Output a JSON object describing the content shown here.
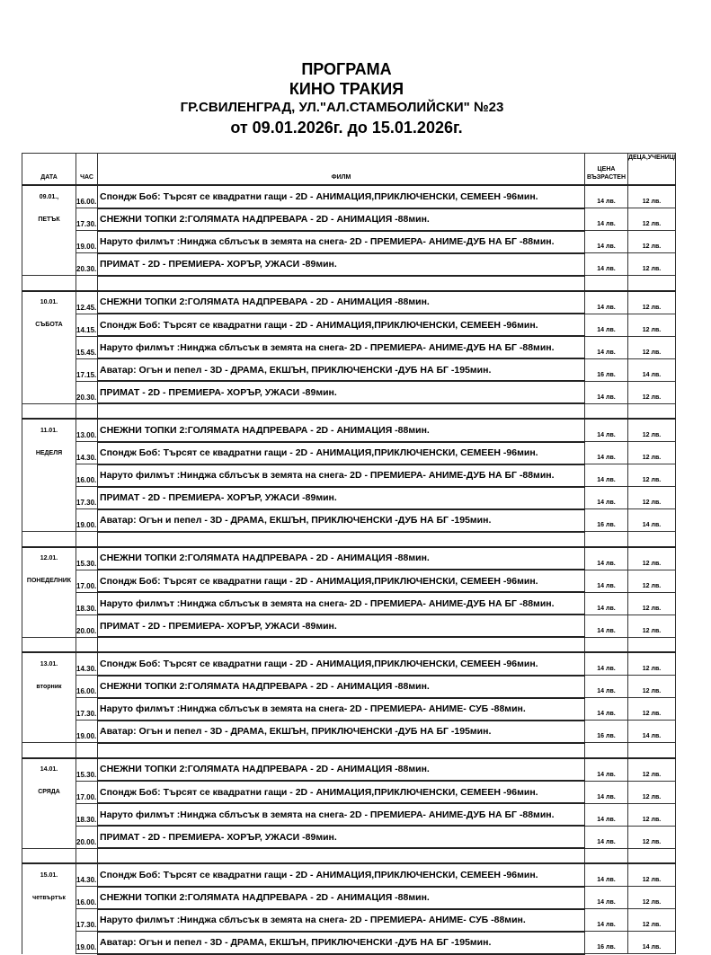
{
  "header": {
    "title": "ПРОГРАМА",
    "cinema": "КИНО ТРАКИЯ",
    "address": "ГР.СВИЛЕНГРАД, УЛ.\"АЛ.СТАМБОЛИЙСКИ\" №23",
    "period": "от 09.01.2026г. до 15.01.2026г."
  },
  "columns": {
    "date": "ДАТА",
    "time": "ЧАС",
    "film": "ФИЛМ",
    "adult": "ЦЕНА ВЪЗРАСТЕН",
    "kids": "ДЕЦА,УЧЕНИЦИ,ПЕНСИОНЕРИ"
  },
  "days": [
    {
      "date": "09.01.,",
      "weekday": "ПЕТЪК",
      "shows": [
        {
          "time": "16.00.",
          "film": "Спондж Боб: Търсят се квадратни гащи - 2D - АНИМАЦИЯ,ПРИКЛЮЧЕНСКИ, СЕМЕЕН  -96мин.",
          "adult": "14 лв.",
          "kids": "12 лв."
        },
        {
          "time": "17.30.",
          "film": "СНЕЖНИ ТОПКИ 2:ГОЛЯМАТА НАДПРЕВАРА    - 2D - АНИМАЦИЯ  -88мин.",
          "adult": "14 лв.",
          "kids": "12 лв."
        },
        {
          "time": "19.00.",
          "film": "Наруто филмът :Нинджа сблъсък в земята на снега- 2D - ПРЕМИЕРА- АНИМЕ-ДУБ НА БГ -88мин.",
          "adult": "14 лв.",
          "kids": "12 лв."
        },
        {
          "time": "20.30.",
          "film": "ПРИМАТ  - 2D - ПРЕМИЕРА- ХОРЪР, УЖАСИ -89мин.",
          "adult": "14 лв.",
          "kids": "12 лв."
        }
      ]
    },
    {
      "date": "10.01.",
      "weekday": "СЪБОТА",
      "shows": [
        {
          "time": "12.45.",
          "film": "СНЕЖНИ ТОПКИ 2:ГОЛЯМАТА НАДПРЕВАРА    - 2D - АНИМАЦИЯ  -88мин.",
          "adult": "14 лв.",
          "kids": "12 лв."
        },
        {
          "time": "14.15.",
          "film": "Спондж Боб: Търсят се квадратни гащи - 2D - АНИМАЦИЯ,ПРИКЛЮЧЕНСКИ, СЕМЕЕН  -96мин.",
          "adult": "14 лв.",
          "kids": "12 лв."
        },
        {
          "time": "15.45.",
          "film": "Наруто филмът :Нинджа сблъсък в земята на снега- 2D - ПРЕМИЕРА- АНИМЕ-ДУБ НА БГ -88мин.",
          "adult": "14 лв.",
          "kids": "12 лв."
        },
        {
          "time": "17.15.",
          "film": "Аватар: Огън и пепел - 3D - ДРАМА, ЕКШЪН, ПРИКЛЮЧЕНСКИ -ДУБ НА БГ -195мин.",
          "adult": "16 лв.",
          "kids": "14 лв."
        },
        {
          "time": "20.30.",
          "film": "ПРИМАТ  - 2D - ПРЕМИЕРА- ХОРЪР, УЖАСИ -89мин.",
          "adult": "14 лв.",
          "kids": "12 лв."
        }
      ]
    },
    {
      "date": "11.01.",
      "weekday": "НЕДЕЛЯ",
      "shows": [
        {
          "time": "13.00.",
          "film": "СНЕЖНИ ТОПКИ 2:ГОЛЯМАТА НАДПРЕВАРА    - 2D - АНИМАЦИЯ  -88мин.",
          "adult": "14 лв.",
          "kids": "12 лв."
        },
        {
          "time": "14.30.",
          "film": "Спондж Боб: Търсят се квадратни гащи - 2D - АНИМАЦИЯ,ПРИКЛЮЧЕНСКИ, СЕМЕЕН  -96мин.",
          "adult": "14 лв.",
          "kids": "12 лв."
        },
        {
          "time": "16.00.",
          "film": "Наруто филмът :Нинджа сблъсък в земята на снега- 2D - ПРЕМИЕРА- АНИМЕ-ДУБ НА БГ -88мин.",
          "adult": "14 лв.",
          "kids": "12 лв."
        },
        {
          "time": "17.30.",
          "film": "ПРИМАТ  - 2D - ПРЕМИЕРА- ХОРЪР, УЖАСИ -89мин.",
          "adult": "14 лв.",
          "kids": "12 лв."
        },
        {
          "time": "19.00.",
          "film": "Аватар: Огън и пепел - 3D - ДРАМА, ЕКШЪН, ПРИКЛЮЧЕНСКИ -ДУБ НА БГ -195мин.",
          "adult": "16 лв.",
          "kids": "14 лв."
        }
      ]
    },
    {
      "date": "12.01.",
      "weekday": "ПОНЕДЕЛНИК",
      "shows": [
        {
          "time": "15.30.",
          "film": "СНЕЖНИ ТОПКИ 2:ГОЛЯМАТА НАДПРЕВАРА    - 2D - АНИМАЦИЯ  -88мин.",
          "adult": "14 лв.",
          "kids": "12 лв."
        },
        {
          "time": "17.00.",
          "film": "Спондж Боб: Търсят се квадратни гащи - 2D - АНИМАЦИЯ,ПРИКЛЮЧЕНСКИ, СЕМЕЕН  -96мин.",
          "adult": "14 лв.",
          "kids": "12 лв."
        },
        {
          "time": "18.30.",
          "film": "Наруто филмът :Нинджа сблъсък в земята на снега- 2D - ПРЕМИЕРА- АНИМЕ-ДУБ НА БГ -88мин.",
          "adult": "14 лв.",
          "kids": "12 лв."
        },
        {
          "time": "20.00.",
          "film": "ПРИМАТ  - 2D - ПРЕМИЕРА- ХОРЪР, УЖАСИ -89мин.",
          "adult": "14 лв.",
          "kids": "12 лв."
        }
      ]
    },
    {
      "date": "13.01.",
      "weekday": "вторник",
      "shows": [
        {
          "time": "14.30.",
          "film": "Спондж Боб: Търсят се квадратни гащи - 2D - АНИМАЦИЯ,ПРИКЛЮЧЕНСКИ, СЕМЕЕН  -96мин.",
          "adult": "14 лв.",
          "kids": "12 лв."
        },
        {
          "time": "16.00.",
          "film": "СНЕЖНИ ТОПКИ 2:ГОЛЯМАТА НАДПРЕВАРА    - 2D - АНИМАЦИЯ  -88мин.",
          "adult": "14 лв.",
          "kids": "12 лв."
        },
        {
          "time": "17.30.",
          "film": "Наруто филмът :Нинджа сблъсък в земята на снега- 2D - ПРЕМИЕРА- АНИМЕ- СУБ -88мин.",
          "adult": "14 лв.",
          "kids": "12 лв."
        },
        {
          "time": "19.00.",
          "film": "Аватар: Огън и пепел - 3D - ДРАМА, ЕКШЪН, ПРИКЛЮЧЕНСКИ -ДУБ НА БГ -195мин.",
          "adult": "16 лв.",
          "kids": "14 лв."
        }
      ]
    },
    {
      "date": "14.01.",
      "weekday": "СРЯДА",
      "shows": [
        {
          "time": "15.30.",
          "film": "СНЕЖНИ ТОПКИ 2:ГОЛЯМАТА НАДПРЕВАРА    - 2D - АНИМАЦИЯ  -88мин.",
          "adult": "14 лв.",
          "kids": "12 лв."
        },
        {
          "time": "17.00.",
          "film": "Спондж Боб: Търсят се квадратни гащи - 2D - АНИМАЦИЯ,ПРИКЛЮЧЕНСКИ, СЕМЕЕН  -96мин.",
          "adult": "14 лв.",
          "kids": "12 лв."
        },
        {
          "time": "18.30.",
          "film": "Наруто филмът :Нинджа сблъсък в земята на снега- 2D - ПРЕМИЕРА- АНИМЕ-ДУБ НА БГ -88мин.",
          "adult": "14 лв.",
          "kids": "12 лв."
        },
        {
          "time": "20.00.",
          "film": "ПРИМАТ  - 2D - ПРЕМИЕРА- ХОРЪР, УЖАСИ -89мин.",
          "adult": "14 лв.",
          "kids": "12 лв."
        }
      ]
    },
    {
      "date": "15.01.",
      "weekday": "четвъртък",
      "shows": [
        {
          "time": "14.30.",
          "film": "Спондж Боб: Търсят се квадратни гащи - 2D - АНИМАЦИЯ,ПРИКЛЮЧЕНСКИ, СЕМЕЕН  -96мин.",
          "adult": "14 лв.",
          "kids": "12 лв."
        },
        {
          "time": "16.00.",
          "film": "СНЕЖНИ ТОПКИ 2:ГОЛЯМАТА НАДПРЕВАРА    - 2D - АНИМАЦИЯ  -88мин.",
          "adult": "14 лв.",
          "kids": "12 лв."
        },
        {
          "time": "17.30.",
          "film": "Наруто филмът :Нинджа сблъсък в земята на снега- 2D - ПРЕМИЕРА- АНИМЕ- СУБ -88мин.",
          "adult": "14 лв.",
          "kids": "12 лв."
        },
        {
          "time": "19.00.",
          "film": "Аватар: Огън и пепел - 3D - ДРАМА, ЕКШЪН, ПРИКЛЮЧЕНСКИ -ДУБ НА БГ -195мин.",
          "adult": "16 лв.",
          "kids": "14 лв."
        }
      ]
    }
  ]
}
